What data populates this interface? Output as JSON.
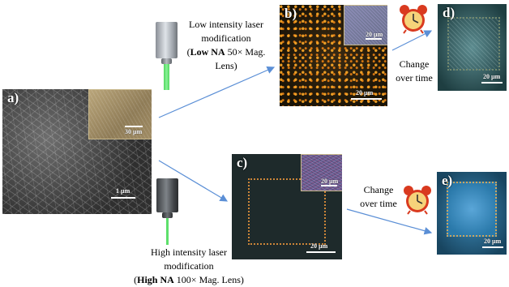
{
  "captions": {
    "low_line1": "Low intensity laser",
    "low_line2": "modification",
    "low_na_bold": "Low NA",
    "low_na_rest": " 50× Mag.",
    "low_line4": "Lens)",
    "high_line1": "High intensity laser",
    "high_line2": "modification",
    "high_na_bold": "High NA",
    "high_na_rest": " 100× Mag. Lens)",
    "change_line1": "Change",
    "change_line2": "over time"
  },
  "panels": {
    "a": {
      "label": "a)",
      "scale": "1 µm",
      "inset_scale": "30 µm"
    },
    "b": {
      "label": "b)",
      "scale": "20 µm",
      "inset_scale": "20 µm"
    },
    "c": {
      "label": "c)",
      "scale": "20 µm",
      "inset_scale": "20 µm"
    },
    "d": {
      "label": "d)",
      "scale": "20 µm"
    },
    "e": {
      "label": "e)",
      "scale": "20 µm"
    }
  },
  "colors": {
    "arrow": "#5b8fd6",
    "beam_green": "#4cd65c",
    "clock_red": "#d93a1f",
    "clock_face": "#f6d37a"
  },
  "icons": [
    "objective-lens-icon",
    "laser-beam-icon",
    "alarm-clock-icon"
  ]
}
